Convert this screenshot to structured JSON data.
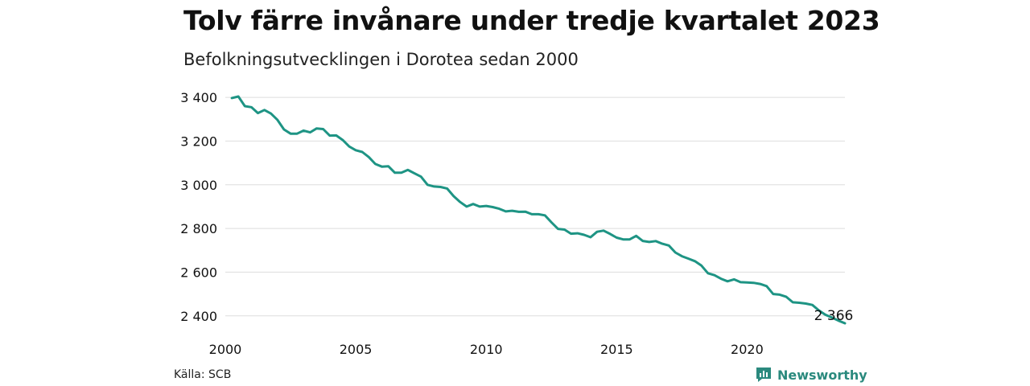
{
  "title": "Tolv färre invånare under tredje kvartalet 2023",
  "subtitle": "Befolkningsutvecklingen i Dorotea sedan 2000",
  "source": "Källa: SCB",
  "brand": "Newsworthy",
  "colors": {
    "line": "#1e9484",
    "grid": "#dddddd",
    "brand": "#2b8a7e"
  },
  "chart_data": {
    "type": "line",
    "x_ticks": [
      "2000",
      "2005",
      "2010",
      "2015",
      "2020"
    ],
    "y_ticks": [
      "2 400",
      "2 600",
      "2 800",
      "3 000",
      "3 200",
      "3 400"
    ],
    "xlim": [
      2000,
      2023.75
    ],
    "ylim": [
      2366,
      3404
    ],
    "end_label": "2 366",
    "series": [
      {
        "x": [
          2000.25,
          2000.5,
          2000.75,
          2001,
          2001.25,
          2001.5,
          2001.75,
          2002,
          2002.25,
          2002.5,
          2002.75,
          2003,
          2003.25,
          2003.5,
          2003.75,
          2004,
          2004.25,
          2004.5,
          2004.75,
          2005,
          2005.25,
          2005.5,
          2005.75,
          2006,
          2006.25,
          2006.5,
          2006.75,
          2007,
          2007.25,
          2007.5,
          2007.75,
          2008,
          2008.25,
          2008.5,
          2008.75,
          2009,
          2009.25,
          2009.5,
          2009.75,
          2010,
          2010.25,
          2010.5,
          2010.75,
          2011,
          2011.25,
          2011.5,
          2011.75,
          2012,
          2012.25,
          2012.5,
          2012.75,
          2013,
          2013.25,
          2013.5,
          2013.75,
          2014,
          2014.25,
          2014.5,
          2014.75,
          2015,
          2015.25,
          2015.5,
          2015.75,
          2016,
          2016.25,
          2016.5,
          2016.75,
          2017,
          2017.25,
          2017.5,
          2017.75,
          2018,
          2018.25,
          2018.5,
          2018.75,
          2019,
          2019.25,
          2019.5,
          2019.75,
          2020,
          2020.25,
          2020.5,
          2020.75,
          2021,
          2021.25,
          2021.5,
          2021.75,
          2022,
          2022.25,
          2022.5,
          2022.75,
          2023,
          2023.25,
          2023.5,
          2023.75
        ],
        "y": [
          3397,
          3404,
          3360,
          3355,
          3328,
          3342,
          3326,
          3297,
          3253,
          3234,
          3234,
          3248,
          3240,
          3258,
          3255,
          3225,
          3226,
          3205,
          3175,
          3158,
          3150,
          3127,
          3095,
          3083,
          3085,
          3055,
          3055,
          3068,
          3052,
          3037,
          3000,
          2992,
          2990,
          2983,
          2948,
          2921,
          2900,
          2912,
          2900,
          2903,
          2898,
          2890,
          2878,
          2881,
          2876,
          2877,
          2865,
          2865,
          2860,
          2828,
          2798,
          2795,
          2776,
          2778,
          2771,
          2760,
          2785,
          2790,
          2775,
          2758,
          2750,
          2750,
          2766,
          2743,
          2738,
          2742,
          2730,
          2722,
          2690,
          2673,
          2662,
          2650,
          2630,
          2595,
          2586,
          2570,
          2558,
          2567,
          2554,
          2553,
          2551,
          2546,
          2536,
          2500,
          2497,
          2487,
          2462,
          2460,
          2456,
          2450,
          2425,
          2405,
          2392,
          2378,
          2366
        ]
      }
    ]
  }
}
